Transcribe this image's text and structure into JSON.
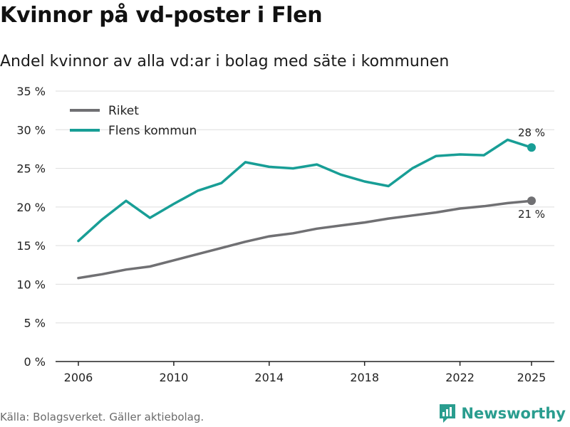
{
  "title": "Kvinnor på vd-poster i Flen",
  "subtitle": "Andel kvinnor av alla vd:ar i bolag med säte i kommunen",
  "footer": "Källa: Bolagsverket. Gäller aktiebolag.",
  "brand": "Newsworthy",
  "colors": {
    "riket": "#707073",
    "flen": "#189e96",
    "grid": "#dddddd",
    "axis": "#222222",
    "brand": "#2a9d8f"
  },
  "chart_data": {
    "type": "line",
    "x": [
      2006,
      2007,
      2008,
      2009,
      2010,
      2011,
      2012,
      2013,
      2014,
      2015,
      2016,
      2017,
      2018,
      2019,
      2020,
      2021,
      2022,
      2023,
      2024,
      2025
    ],
    "series": [
      {
        "name": "Riket",
        "key": "riket",
        "values": [
          10.8,
          11.3,
          11.9,
          12.3,
          13.1,
          13.9,
          14.7,
          15.5,
          16.2,
          16.6,
          17.2,
          17.6,
          18.0,
          18.5,
          18.9,
          19.3,
          19.8,
          20.1,
          20.5,
          20.8
        ],
        "end_label": "21 %"
      },
      {
        "name": "Flens kommun",
        "key": "flen",
        "values": [
          15.6,
          18.4,
          20.8,
          18.6,
          20.4,
          22.1,
          23.1,
          25.8,
          25.2,
          25.0,
          25.5,
          24.2,
          23.3,
          22.7,
          25.0,
          26.6,
          26.8,
          26.7,
          28.7,
          27.7
        ],
        "end_label": "28 %"
      }
    ],
    "y_ticks": [
      0,
      5,
      10,
      15,
      20,
      25,
      30,
      35
    ],
    "y_tick_labels": [
      "0 %",
      "5 %",
      "10 %",
      "15 %",
      "20 %",
      "25 %",
      "30 %",
      "35 %"
    ],
    "x_ticks": [
      2006,
      2010,
      2014,
      2018,
      2022,
      2025
    ],
    "x_tick_labels": [
      "2006",
      "2010",
      "2014",
      "2018",
      "2022",
      "2025"
    ],
    "ylim": [
      0,
      35
    ],
    "xlim": [
      2006,
      2025
    ],
    "xlabel": "",
    "ylabel": "",
    "grid": true,
    "legend_position": "top-left"
  }
}
